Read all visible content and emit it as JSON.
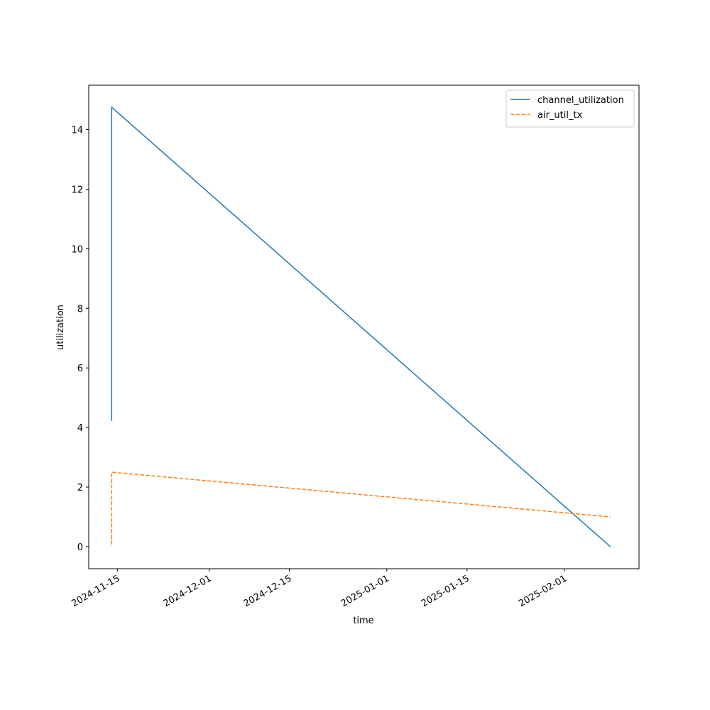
{
  "chart_data": {
    "type": "line",
    "x_label": "time",
    "y_label": "utilization",
    "x": [
      "2024-11-14",
      "2024-11-14",
      "2024-11-14",
      "2025-02-09"
    ],
    "series": [
      {
        "name": "channel_utilization",
        "color": "#1f77b4",
        "linestyle": "solid",
        "values": [
          12.08,
          4.22,
          14.75,
          0
        ]
      },
      {
        "name": "air_util_tx",
        "color": "#ff7f0e",
        "linestyle": "dashed",
        "values": [
          0.78,
          0.05,
          2.5,
          1.0
        ]
      }
    ],
    "xlim": [
      "2024-11-10",
      "2025-02-14"
    ],
    "xticks": [
      "2024-11-15",
      "2024-12-01",
      "2024-12-15",
      "2025-01-01",
      "2025-01-15",
      "2025-02-01"
    ],
    "ylim": [
      -0.74,
      15.49
    ],
    "yticks": [
      0,
      2,
      4,
      6,
      8,
      10,
      12,
      14
    ],
    "grid": false,
    "legend": "upper right"
  }
}
